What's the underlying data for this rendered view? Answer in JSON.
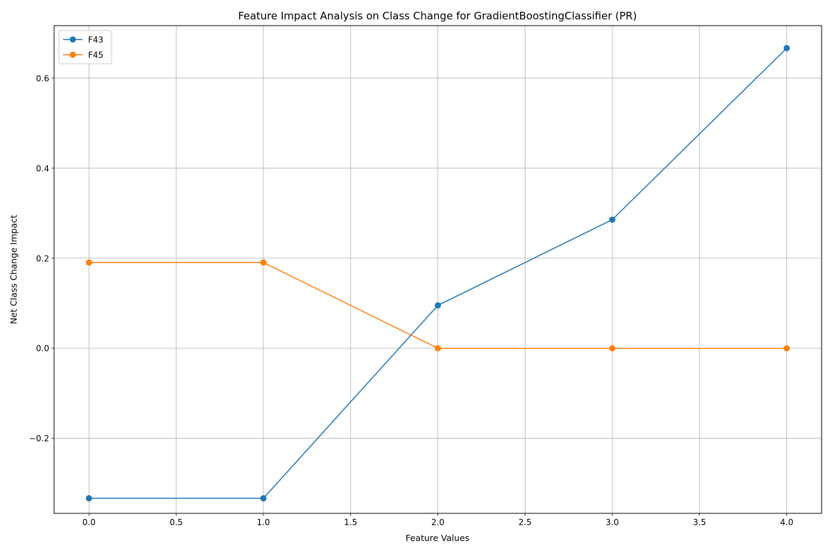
{
  "chart_data": {
    "type": "line",
    "title": "Feature Impact Analysis on Class Change for GradientBoostingClassifier (PR)",
    "xlabel": "Feature Values",
    "ylabel": "Net Class Change Impact",
    "x": [
      0,
      1,
      2,
      3,
      4
    ],
    "xlim": [
      -0.2,
      4.2
    ],
    "ylim": [
      -0.3667,
      0.7167
    ],
    "xticks": [
      0.0,
      0.5,
      1.0,
      1.5,
      2.0,
      2.5,
      3.0,
      3.5,
      4.0
    ],
    "xtick_labels": [
      "0.0",
      "0.5",
      "1.0",
      "1.5",
      "2.0",
      "2.5",
      "3.0",
      "3.5",
      "4.0"
    ],
    "yticks": [
      -0.2,
      0.0,
      0.2,
      0.4,
      0.6
    ],
    "ytick_labels": [
      "−0.2",
      "0.0",
      "0.2",
      "0.4",
      "0.6"
    ],
    "grid": true,
    "legend_position": "top-left",
    "series": [
      {
        "name": "F43",
        "color": "#1f77b4",
        "marker": "circle",
        "values": [
          -0.3333,
          -0.3333,
          0.0952,
          0.2857,
          0.6667
        ]
      },
      {
        "name": "F45",
        "color": "#ff7f0e",
        "marker": "circle",
        "values": [
          0.1905,
          0.1905,
          0.0,
          0.0,
          0.0
        ]
      }
    ]
  }
}
